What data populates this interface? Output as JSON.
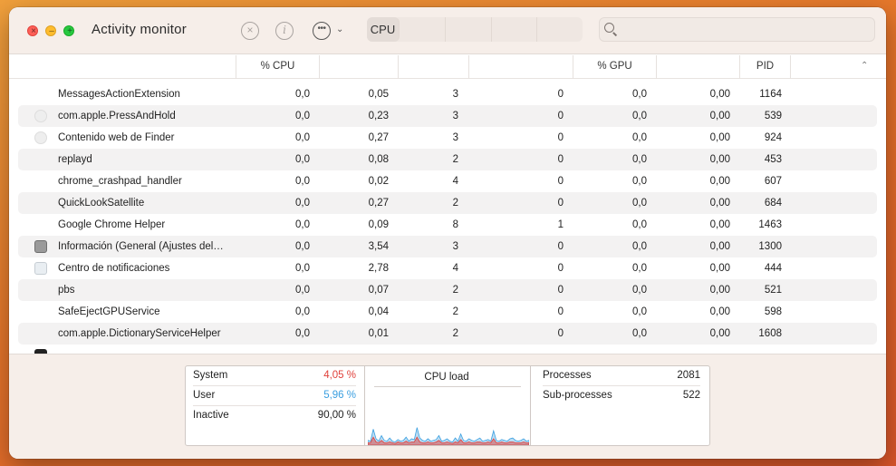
{
  "window": {
    "title": "Activity monitor",
    "controls": {
      "close_glyph": "×",
      "min_glyph": "–",
      "max_glyph": "+"
    }
  },
  "toolbar": {
    "stop_glyph": "×",
    "info_glyph": "i",
    "more_glyph": "•••",
    "chevron_glyph": "⌄",
    "tabs": [
      {
        "label": "CPU",
        "active": true
      },
      {
        "label": ""
      },
      {
        "label": ""
      },
      {
        "label": ""
      },
      {
        "label": ""
      }
    ],
    "search": {
      "placeholder": "",
      "value": ""
    }
  },
  "columns": [
    {
      "label": ""
    },
    {
      "label": "% CPU"
    },
    {
      "label": ""
    },
    {
      "label": ""
    },
    {
      "label": ""
    },
    {
      "label": "% GPU"
    },
    {
      "label": ""
    },
    {
      "label": "PID"
    }
  ],
  "sort_indicator": "⌃",
  "processes": [
    {
      "name": "MessagesActionExtension",
      "cpu": "0,0",
      "time": "0,05",
      "threads": "3",
      "wakes": "0",
      "gpu": "0,0",
      "gputime": "0,00",
      "pid": "1164",
      "icon": "none"
    },
    {
      "name": "com.apple.PressAndHold",
      "cpu": "0,0",
      "time": "0,23",
      "threads": "3",
      "wakes": "0",
      "gpu": "0,0",
      "gputime": "0,00",
      "pid": "539",
      "icon": "bubble-icon"
    },
    {
      "name": "Contenido web de Finder",
      "cpu": "0,0",
      "time": "0,27",
      "threads": "3",
      "wakes": "0",
      "gpu": "0,0",
      "gputime": "0,00",
      "pid": "924",
      "icon": "bubble-icon"
    },
    {
      "name": "replayd",
      "cpu": "0,0",
      "time": "0,08",
      "threads": "2",
      "wakes": "0",
      "gpu": "0,0",
      "gputime": "0,00",
      "pid": "453",
      "icon": "none"
    },
    {
      "name": "chrome_crashpad_handler",
      "cpu": "0,0",
      "time": "0,02",
      "threads": "4",
      "wakes": "0",
      "gpu": "0,0",
      "gputime": "0,00",
      "pid": "607",
      "icon": "none"
    },
    {
      "name": "QuickLookSatellite",
      "cpu": "0,0",
      "time": "0,27",
      "threads": "2",
      "wakes": "0",
      "gpu": "0,0",
      "gputime": "0,00",
      "pid": "684",
      "icon": "none"
    },
    {
      "name": "Google Chrome Helper",
      "cpu": "0,0",
      "time": "0,09",
      "threads": "8",
      "wakes": "1",
      "gpu": "0,0",
      "gputime": "0,00",
      "pid": "1463",
      "icon": "none"
    },
    {
      "name": "Información (General (Ajustes del…",
      "cpu": "0,0",
      "time": "3,54",
      "threads": "3",
      "wakes": "0",
      "gpu": "0,0",
      "gputime": "0,00",
      "pid": "1300",
      "icon": "gear-icon"
    },
    {
      "name": "Centro de notificaciones",
      "cpu": "0,0",
      "time": "2,78",
      "threads": "4",
      "wakes": "0",
      "gpu": "0,0",
      "gputime": "0,00",
      "pid": "444",
      "icon": "panel-icon"
    },
    {
      "name": "pbs",
      "cpu": "0,0",
      "time": "0,07",
      "threads": "2",
      "wakes": "0",
      "gpu": "0,0",
      "gputime": "0,00",
      "pid": "521",
      "icon": "none"
    },
    {
      "name": "SafeEjectGPUService",
      "cpu": "0,0",
      "time": "0,04",
      "threads": "2",
      "wakes": "0",
      "gpu": "0,0",
      "gputime": "0,00",
      "pid": "598",
      "icon": "none"
    },
    {
      "name": "com.apple.DictionaryServiceHelper",
      "cpu": "0,0",
      "time": "0,01",
      "threads": "2",
      "wakes": "0",
      "gpu": "0,0",
      "gputime": "0,00",
      "pid": "1608",
      "icon": "none"
    },
    {
      "name": "",
      "cpu": "",
      "time": "",
      "threads": "",
      "wakes": "",
      "gpu": "",
      "gputime": "",
      "pid": "",
      "icon": "terminal-icon"
    }
  ],
  "summary": {
    "system": {
      "label": "System",
      "value": "4,05 %",
      "color": "#e0403a"
    },
    "user": {
      "label": "User",
      "value": "5,96 %",
      "color": "#3a9fe0"
    },
    "inactive": {
      "label": "Inactive",
      "value": "90,00 %"
    },
    "cpu_load_title": "CPU load",
    "processes": {
      "label": "Processes",
      "value": "2081"
    },
    "subprocesses": {
      "label": "Sub-processes",
      "value": "522"
    }
  },
  "chart_data": {
    "type": "area",
    "title": "CPU load",
    "ylim": [
      0,
      100
    ],
    "series": [
      {
        "name": "User",
        "color": "#3a9fe0",
        "values": [
          6,
          5,
          20,
          8,
          5,
          12,
          6,
          5,
          9,
          5,
          4,
          7,
          5,
          6,
          10,
          5,
          8,
          7,
          22,
          9,
          6,
          5,
          8,
          5,
          6,
          7,
          12,
          5,
          6,
          8,
          5,
          4,
          9,
          5,
          14,
          6,
          5,
          8,
          6,
          5,
          7,
          9,
          5,
          6,
          7,
          5,
          18,
          6,
          5,
          7,
          6,
          5,
          8,
          9,
          6,
          5,
          6,
          8,
          5,
          6
        ]
      },
      {
        "name": "System",
        "color": "#e0403a",
        "values": [
          3,
          3,
          10,
          4,
          3,
          6,
          3,
          3,
          4,
          3,
          2,
          4,
          3,
          3,
          5,
          3,
          4,
          4,
          10,
          4,
          3,
          3,
          4,
          3,
          3,
          4,
          6,
          3,
          3,
          4,
          3,
          2,
          4,
          3,
          7,
          3,
          3,
          4,
          3,
          3,
          4,
          4,
          3,
          3,
          4,
          3,
          8,
          3,
          3,
          4,
          3,
          3,
          4,
          4,
          3,
          3,
          3,
          4,
          3,
          3
        ]
      }
    ]
  }
}
